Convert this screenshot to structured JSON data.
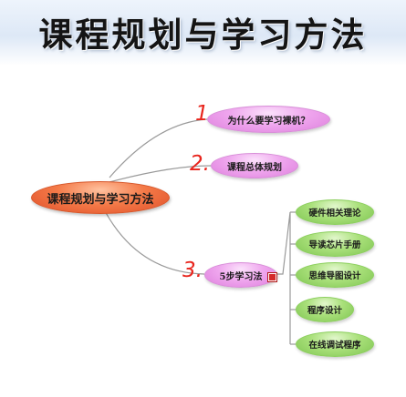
{
  "title": "课程规划与学习方法",
  "root": {
    "label": "课程规划与学习方法"
  },
  "branches": [
    {
      "number": "1.",
      "label": "为什么要学习裸机？"
    },
    {
      "number": "2.",
      "label": "课程总体规划"
    },
    {
      "number": "3.",
      "label": "5步学习法"
    }
  ],
  "steps": [
    "硬件相关理论",
    "导读芯片手册",
    "思维导图设计",
    "程序设计",
    "在线调试程序"
  ],
  "icons": {
    "note": "note-icon"
  },
  "colors": {
    "root": "#f0703f",
    "branch": "#efa6ee",
    "step": "#a9e07a",
    "number": "#e8251d",
    "connector": "#9a9a9a"
  }
}
